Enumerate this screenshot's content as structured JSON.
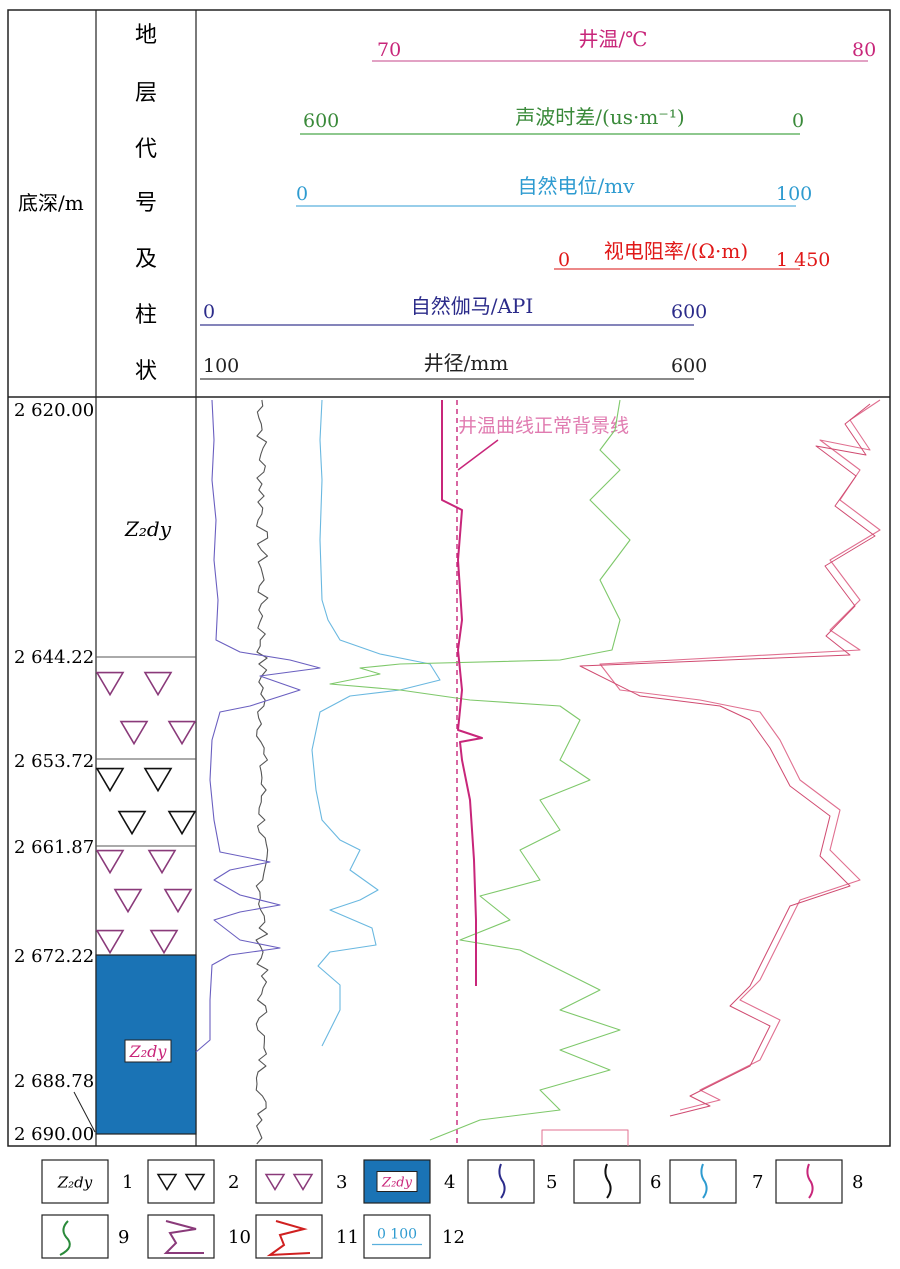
{
  "header": {
    "depth_label": "底深/m",
    "strata_label_chars": [
      "地",
      "层",
      "代",
      "号",
      "及",
      "柱",
      "状"
    ],
    "scales": [
      {
        "name": "井温/℃",
        "min": "70",
        "max": "80",
        "color": "#c8267a"
      },
      {
        "name": "声波时差/(us·m⁻¹)",
        "min": "600",
        "max": "0",
        "color": "#3a9a3a"
      },
      {
        "name": "自然电位/mv",
        "min": "0",
        "max": "100",
        "color": "#2e9bd0"
      },
      {
        "name": "视电阻率/(Ω·m)",
        "min": "0",
        "max": "1 450",
        "color": "#e01818"
      },
      {
        "name": "自然伽马/API",
        "min": "0",
        "max": "600",
        "color": "#2b2b8a"
      },
      {
        "name": "井径/mm",
        "min": "100",
        "max": "600",
        "color": "#222222"
      }
    ]
  },
  "depths": [
    "2 620.00",
    "2 644.22",
    "2 653.72",
    "2 661.87",
    "2 672.22",
    "2 688.78",
    "2 690.00"
  ],
  "strata": [
    {
      "label": "Z₂dy",
      "type": "plain"
    },
    {
      "label": "",
      "type": "purple-triangles"
    },
    {
      "label": "",
      "type": "black-triangles"
    },
    {
      "label": "",
      "type": "purple-triangles"
    },
    {
      "label": "Z₂dy",
      "type": "blue-fill"
    }
  ],
  "annotation": "井温曲线正常背景线",
  "legend": [
    {
      "num": "1",
      "icon": "z2dy-text-icon",
      "text": "Z₂dy"
    },
    {
      "num": "2",
      "icon": "black-triangles-icon",
      "text": ""
    },
    {
      "num": "3",
      "icon": "purple-triangles-icon",
      "text": ""
    },
    {
      "num": "4",
      "icon": "blue-box-icon",
      "text": "Z₂dy"
    },
    {
      "num": "5",
      "icon": "navy-curve-icon",
      "text": ""
    },
    {
      "num": "6",
      "icon": "black-curve-icon",
      "text": ""
    },
    {
      "num": "7",
      "icon": "blue-curve-icon",
      "text": ""
    },
    {
      "num": "8",
      "icon": "magenta-curve-icon",
      "text": ""
    },
    {
      "num": "9",
      "icon": "green-curve-icon",
      "text": ""
    },
    {
      "num": "10",
      "icon": "purple-curve-icon",
      "text": ""
    },
    {
      "num": "11",
      "icon": "red-curve-icon",
      "text": ""
    },
    {
      "num": "12",
      "icon": "scale-bar-icon",
      "text": "0   100"
    }
  ]
}
